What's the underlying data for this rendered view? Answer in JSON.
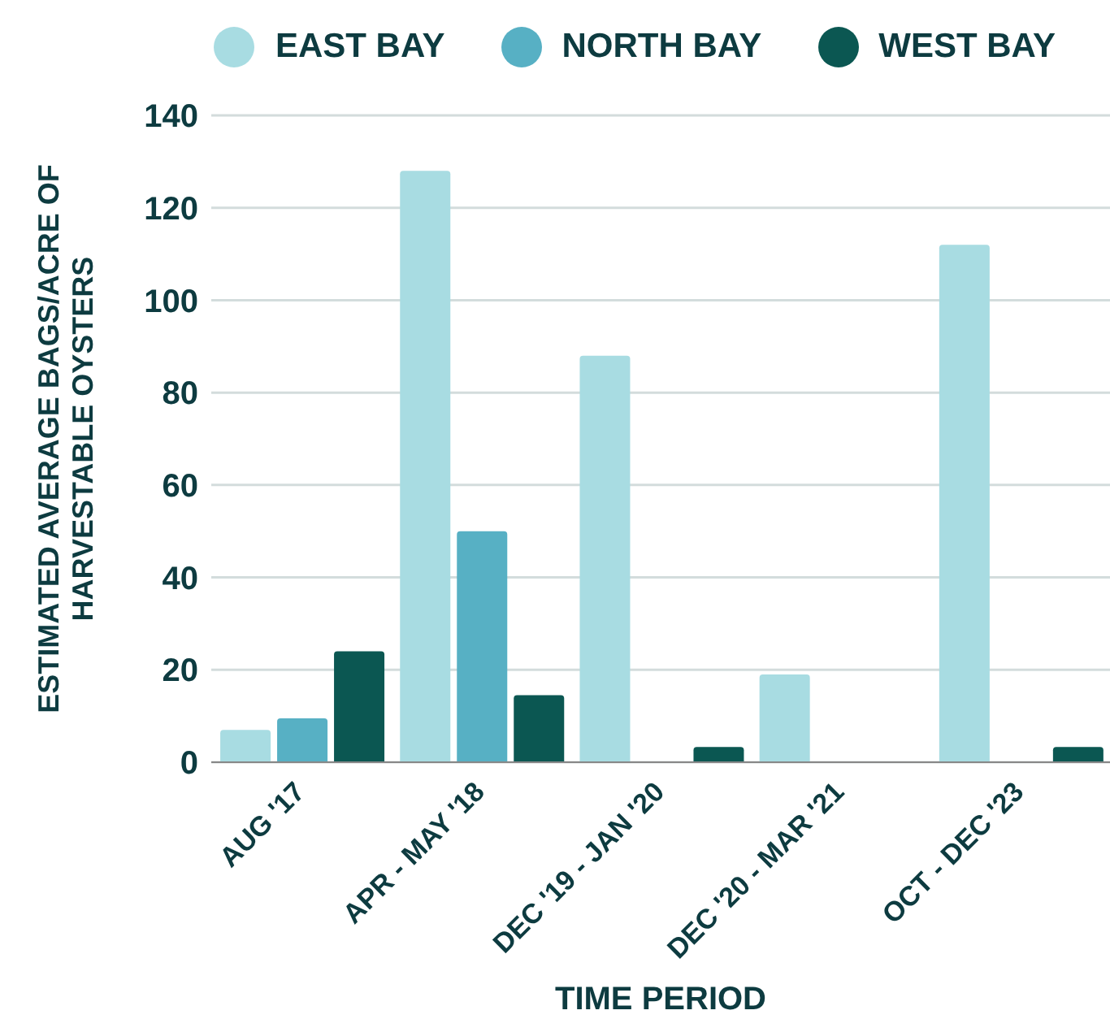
{
  "chart_data": {
    "type": "bar",
    "xlabel": "TIME PERIOD",
    "ylabel": "ESTIMATED AVERAGE BAGS/ACRE OF HARVESTABLE OYSTERS",
    "categories": [
      "AUG '17",
      "APR - MAY '18",
      "DEC '19 - JAN '20",
      "DEC '20 - MAR '21",
      "OCT - DEC '23"
    ],
    "series": [
      {
        "name": "EAST BAY",
        "color": "#a8dce2",
        "values": [
          7,
          128,
          88,
          19,
          112
        ]
      },
      {
        "name": "NORTH BAY",
        "color": "#57b0c4",
        "values": [
          9.5,
          50,
          0,
          0,
          0
        ]
      },
      {
        "name": "WEST BAY",
        "color": "#0b5752",
        "values": [
          24,
          14.5,
          3.3,
          0,
          3.3
        ]
      }
    ],
    "ylim": [
      0,
      140
    ],
    "yticks": [
      0,
      20,
      40,
      60,
      80,
      100,
      120,
      140
    ],
    "grid": "y",
    "legend": "top"
  }
}
